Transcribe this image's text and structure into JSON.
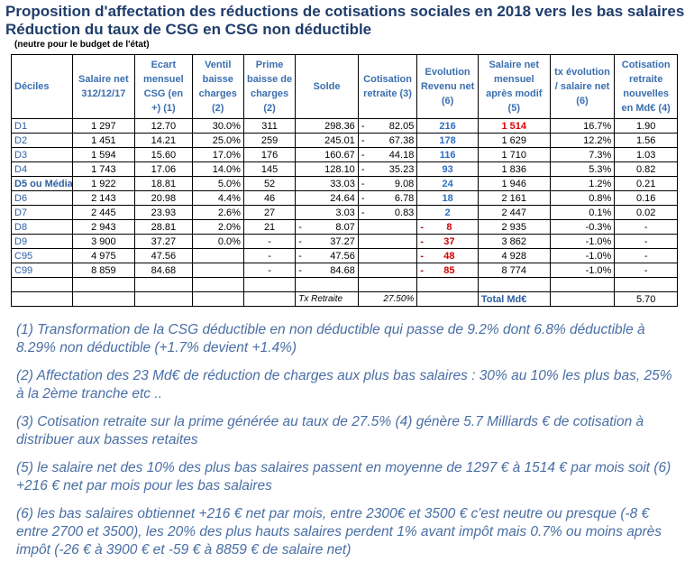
{
  "title": {
    "line1": "Proposition d'affectation des réductions de cotisations sociales en 2018 vers les bas salaires",
    "line2": "Réduction du taux de CSG en CSG non déductible",
    "subtitle": "(neutre pour le budget de l'état)"
  },
  "headers": [
    "Déciles",
    "Salaire net 312/12/17",
    "Ecart mensuel CSG (en +) (1)",
    "Ventil baisse charges (2)",
    "Prime baisse de charges (2)",
    "Solde",
    "Cotisation retraite (3)",
    "Evolution Revenu net (6)",
    "Salaire net mensuel après modif (5)",
    "tx évolution / salaire net (6)",
    "Cotisation retraite nouvelles en Md€ (4)"
  ],
  "rows": [
    {
      "label": "D1",
      "salaire": "1 297",
      "ecart": "12.70",
      "ventil": "30.0%",
      "prime": "311",
      "solde": "298.36",
      "sd": "",
      "cot": "82.05",
      "cd": "-",
      "evo": "216",
      "ed": "",
      "neg": false,
      "net": "1 514",
      "red": true,
      "tx": "16.7%",
      "md": "1.90"
    },
    {
      "label": "D2",
      "salaire": "1 451",
      "ecart": "14.21",
      "ventil": "25.0%",
      "prime": "259",
      "solde": "245.01",
      "sd": "",
      "cot": "67.38",
      "cd": "-",
      "evo": "178",
      "ed": "",
      "neg": false,
      "net": "1 629",
      "red": false,
      "tx": "12.2%",
      "md": "1.56"
    },
    {
      "label": "D3",
      "salaire": "1 594",
      "ecart": "15.60",
      "ventil": "17.0%",
      "prime": "176",
      "solde": "160.67",
      "sd": "",
      "cot": "44.18",
      "cd": "-",
      "evo": "116",
      "ed": "",
      "neg": false,
      "net": "1 710",
      "red": false,
      "tx": "7.3%",
      "md": "1.03"
    },
    {
      "label": "D4",
      "salaire": "1 743",
      "ecart": "17.06",
      "ventil": "14.0%",
      "prime": "145",
      "solde": "128.10",
      "sd": "",
      "cot": "35.23",
      "cd": "-",
      "evo": "93",
      "ed": "",
      "neg": false,
      "net": "1 836",
      "red": false,
      "tx": "5.3%",
      "md": "0.82"
    },
    {
      "label": "D5 ou Média",
      "salaire": "1 922",
      "ecart": "18.81",
      "ventil": "5.0%",
      "prime": "52",
      "solde": "33.03",
      "sd": "",
      "cot": "9.08",
      "cd": "-",
      "evo": "24",
      "ed": "",
      "neg": false,
      "net": "1 946",
      "red": false,
      "tx": "1.2%",
      "md": "0.21"
    },
    {
      "label": "D6",
      "salaire": "2 143",
      "ecart": "20.98",
      "ventil": "4.4%",
      "prime": "46",
      "solde": "24.64",
      "sd": "",
      "cot": "6.78",
      "cd": "-",
      "evo": "18",
      "ed": "",
      "neg": false,
      "net": "2 161",
      "red": false,
      "tx": "0.8%",
      "md": "0.16"
    },
    {
      "label": "D7",
      "salaire": "2 445",
      "ecart": "23.93",
      "ventil": "2.6%",
      "prime": "27",
      "solde": "3.03",
      "sd": "",
      "cot": "0.83",
      "cd": "-",
      "evo": "2",
      "ed": "",
      "neg": false,
      "net": "2 447",
      "red": false,
      "tx": "0.1%",
      "md": "0.02"
    },
    {
      "label": "D8",
      "salaire": "2 943",
      "ecart": "28.81",
      "ventil": "2.0%",
      "prime": "21",
      "solde": "8.07",
      "sd": "-",
      "cot": "",
      "cd": "",
      "evo": "8",
      "ed": "-",
      "neg": true,
      "net": "2 935",
      "red": false,
      "tx": "-0.3%",
      "md": "-"
    },
    {
      "label": "D9",
      "salaire": "3 900",
      "ecart": "37.27",
      "ventil": "0.0%",
      "prime": "-",
      "solde": "37.27",
      "sd": "-",
      "cot": "",
      "cd": "",
      "evo": "37",
      "ed": "-",
      "neg": true,
      "net": "3 862",
      "red": false,
      "tx": "-1.0%",
      "md": "-"
    },
    {
      "label": "C95",
      "salaire": "4 975",
      "ecart": "47.56",
      "ventil": "",
      "prime": "-",
      "solde": "47.56",
      "sd": "-",
      "cot": "",
      "cd": "",
      "evo": "48",
      "ed": "-",
      "neg": true,
      "net": "4 928",
      "red": false,
      "tx": "-1.0%",
      "md": "-"
    },
    {
      "label": "C99",
      "salaire": "8 859",
      "ecart": "84.68",
      "ventil": "",
      "prime": "-",
      "solde": "84.68",
      "sd": "-",
      "cot": "",
      "cd": "",
      "evo": "85",
      "ed": "-",
      "neg": true,
      "net": "8 774",
      "red": false,
      "tx": "-1.0%",
      "md": "-"
    }
  ],
  "footer": {
    "tx_label": "Tx Retraite",
    "tx_value": "27.50%",
    "total_label": "Total Md€",
    "total_value": "5.70"
  },
  "notes": [
    "(1) Transformation de la CSG déductible en non déductible qui passe de 9.2% dont 6.8% déductible à 8.29% non déductible (+1.7% devient +1.4%)",
    "(2) Affectation des 23 Md€ de réduction de charges aux plus bas salaires : 30% au 10% les plus bas, 25%  à la 2ème tranche etc ..",
    "(3) Cotisation retraite sur la prime générée au taux de 27.5%  (4) génère 5.7 Milliards € de cotisation à distribuer aux basses retaites",
    "(5) le salaire net des 10% des plus bas salaires passent en moyenne de 1297 € à 1514 € par mois soit (6) +216 € net par mois pour les bas salaires",
    "(6) les bas salaires obtiennet +216 € net par mois, entre 2300€ et 3500 € c'est neutre ou presque (-8 € entre 2700 et 3500), les 20% des plus hauts salaires perdent 1%  avant impôt  mais 0.7% ou moins  après impôt (-26 € à 3900 € et -59 € à 8859 € de salaire net)"
  ]
}
